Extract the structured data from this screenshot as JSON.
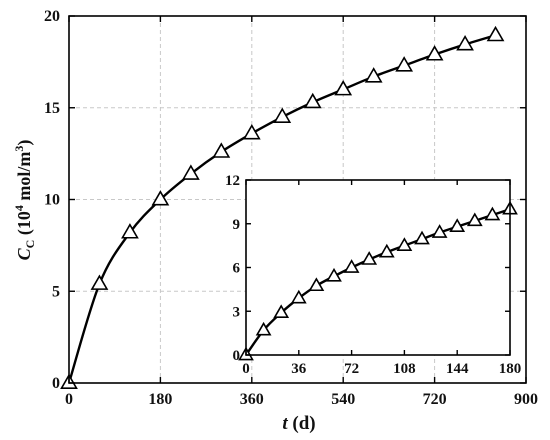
{
  "chart_data": [
    {
      "type": "line",
      "role": "main",
      "xlabel": {
        "var": "t",
        "unit": " (d)"
      },
      "ylabel": {
        "var": "C",
        "sub": "C",
        "unit_prefix": " (10",
        "exp1": "4",
        "unit_mid": " mol/m",
        "exp2": "3",
        "unit_suffix": ")"
      },
      "xlim": [
        0,
        900
      ],
      "ylim": [
        0,
        20
      ],
      "xticks": [
        "0",
        "180",
        "360",
        "540",
        "720",
        "900"
      ],
      "xtick_values": [
        0,
        180,
        360,
        540,
        720,
        900
      ],
      "yticks": [
        "0",
        "5",
        "10",
        "15",
        "20"
      ],
      "ytick_values": [
        0,
        5,
        10,
        15,
        20
      ],
      "grid": true,
      "series": [
        {
          "marker": "triangle",
          "x": [
            0,
            60,
            120,
            180,
            240,
            300,
            360,
            420,
            480,
            540,
            600,
            660,
            720,
            780,
            840
          ],
          "y": [
            0,
            5.4,
            8.2,
            10.0,
            11.4,
            12.6,
            13.6,
            14.5,
            15.3,
            16.0,
            16.7,
            17.3,
            17.9,
            18.45,
            18.95
          ]
        }
      ]
    },
    {
      "type": "line",
      "role": "inset",
      "xlim": [
        0,
        180
      ],
      "ylim": [
        0,
        12
      ],
      "xticks": [
        "0",
        "36",
        "72",
        "108",
        "144",
        "180"
      ],
      "xtick_values": [
        0,
        36,
        72,
        108,
        144,
        180
      ],
      "yticks": [
        "0",
        "3",
        "6",
        "9",
        "12"
      ],
      "ytick_values": [
        0,
        3,
        6,
        9,
        12
      ],
      "grid": false,
      "series": [
        {
          "marker": "triangle",
          "x": [
            0,
            12,
            24,
            36,
            48,
            60,
            72,
            84,
            96,
            108,
            120,
            132,
            144,
            156,
            168,
            180
          ],
          "y": [
            0,
            1.7,
            2.9,
            3.9,
            4.75,
            5.4,
            6.0,
            6.55,
            7.05,
            7.5,
            7.95,
            8.4,
            8.8,
            9.2,
            9.6,
            10.0
          ]
        }
      ]
    }
  ]
}
